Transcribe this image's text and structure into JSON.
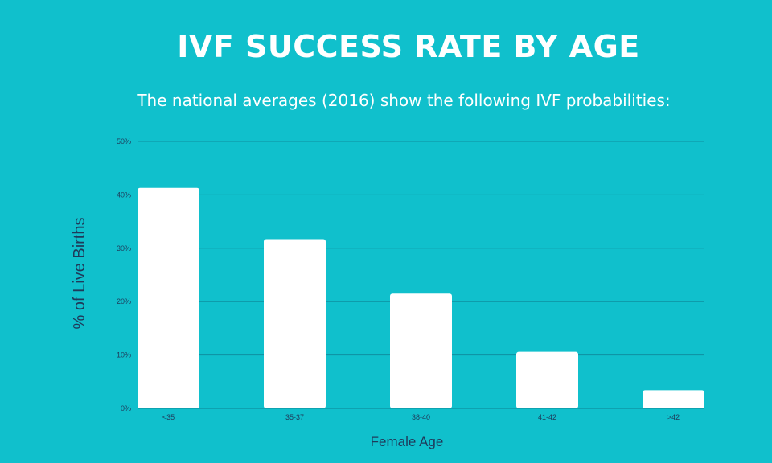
{
  "title": "IVF SUCCESS RATE BY AGE",
  "subtitle": "The national averages (2016) show the following IVF probabilities:",
  "colors": {
    "background": "#10c0cc",
    "bar": "#ffffff",
    "gridline": "#0e8fa0",
    "text_dark": "#1f3a5a"
  },
  "chart_data": {
    "type": "bar",
    "categories": [
      "<35",
      "35-37",
      "38-40",
      "41-42",
      ">42"
    ],
    "values": [
      41.3,
      31.7,
      21.5,
      10.6,
      3.4
    ],
    "xlabel": "Female Age",
    "ylabel": "% of Live Births",
    "ylim": [
      0,
      50
    ],
    "yticks": [
      0,
      10,
      20,
      30,
      40,
      50
    ],
    "ytick_labels": [
      "0%",
      "10%",
      "20%",
      "30%",
      "40%",
      "50%"
    ],
    "grid": true,
    "legend": "none"
  }
}
